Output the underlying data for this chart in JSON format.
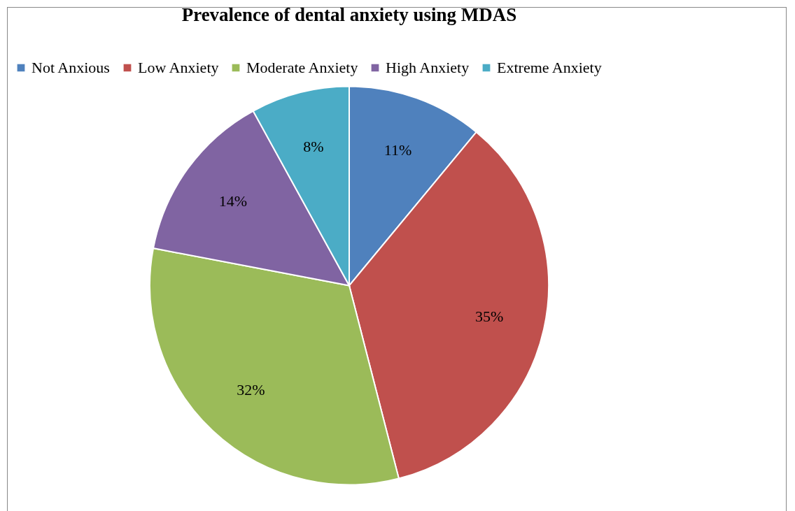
{
  "chart_data": {
    "type": "pie",
    "title": "Prevalence of dental anxiety using MDAS",
    "categories": [
      "Not Anxious",
      "Low Anxiety",
      "Moderate Anxiety",
      "High Anxiety",
      "Extreme Anxiety"
    ],
    "values": [
      11,
      35,
      32,
      14,
      8
    ],
    "value_labels": [
      "11%",
      "35%",
      "32%",
      "14%",
      "8%"
    ],
    "colors": [
      "#4f81bd",
      "#c0504d",
      "#9bbb59",
      "#8064a2",
      "#4bacc6"
    ],
    "legend": "top"
  }
}
